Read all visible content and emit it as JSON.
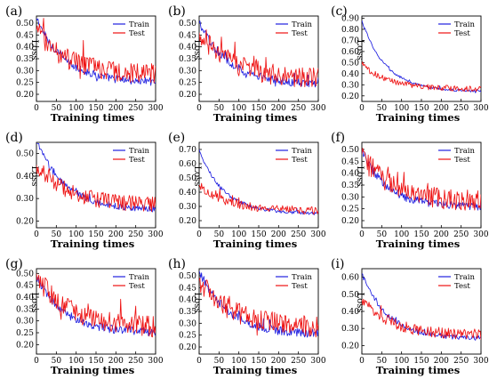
{
  "colors": {
    "train": "#1f1fe0",
    "test": "#ee1111"
  },
  "chart_data": [
    {
      "type": "line",
      "panel_label": "(a)",
      "xlabel": "Training times",
      "ylabel": "Loss",
      "xlim": [
        0,
        300
      ],
      "xticks": [
        0,
        50,
        100,
        150,
        200,
        250,
        300
      ],
      "ylim": [
        0.17,
        0.53
      ],
      "yticks": [
        0.2,
        0.25,
        0.3,
        0.35,
        0.4,
        0.45,
        0.5
      ],
      "ytick_labels": [
        "0.20",
        "0.25",
        "0.30",
        "0.35",
        "0.40",
        "0.45",
        "0.50"
      ],
      "legend": "top-right",
      "series": [
        {
          "name": "Train",
          "start": 0.52,
          "plateau": 0.25,
          "decay": 70,
          "noise": 0.018
        },
        {
          "name": "Test",
          "start": 0.47,
          "plateau": 0.28,
          "decay": 80,
          "noise": 0.045
        }
      ]
    },
    {
      "type": "line",
      "panel_label": "(b)",
      "xlabel": "Training times",
      "ylabel": "Loss",
      "xlim": [
        0,
        300
      ],
      "xticks": [
        0,
        50,
        100,
        150,
        200,
        250,
        300
      ],
      "ylim": [
        0.17,
        0.53
      ],
      "yticks": [
        0.2,
        0.25,
        0.3,
        0.35,
        0.4,
        0.45,
        0.5
      ],
      "ytick_labels": [
        "0.20",
        "0.25",
        "0.30",
        "0.35",
        "0.40",
        "0.45",
        "0.50"
      ],
      "legend": "top-right",
      "series": [
        {
          "name": "Train",
          "start": 0.5,
          "plateau": 0.24,
          "decay": 75,
          "noise": 0.018
        },
        {
          "name": "Test",
          "start": 0.46,
          "plateau": 0.26,
          "decay": 85,
          "noise": 0.045
        }
      ]
    },
    {
      "type": "line",
      "panel_label": "(c)",
      "xlabel": "Training times",
      "ylabel": "Loss",
      "xlim": [
        0,
        300
      ],
      "xticks": [
        0,
        50,
        100,
        150,
        200,
        250,
        300
      ],
      "ylim": [
        0.15,
        0.92
      ],
      "yticks": [
        0.2,
        0.3,
        0.4,
        0.5,
        0.6,
        0.7,
        0.8,
        0.9
      ],
      "ytick_labels": [
        "0.20",
        "0.30",
        "0.40",
        "0.50",
        "0.60",
        "0.70",
        "0.80",
        "0.90"
      ],
      "legend": "top-right",
      "series": [
        {
          "name": "Train",
          "start": 0.88,
          "plateau": 0.24,
          "decay": 60,
          "noise": 0.012
        },
        {
          "name": "Test",
          "start": 0.48,
          "plateau": 0.26,
          "decay": 70,
          "noise": 0.025
        }
      ]
    },
    {
      "type": "line",
      "panel_label": "(d)",
      "xlabel": "Training times",
      "ylabel": "Loss",
      "xlim": [
        0,
        300
      ],
      "xticks": [
        0,
        50,
        100,
        150,
        200,
        250,
        300
      ],
      "ylim": [
        0.17,
        0.55
      ],
      "yticks": [
        0.2,
        0.3,
        0.4,
        0.5
      ],
      "ytick_labels": [
        "0.20",
        "0.30",
        "0.40",
        "0.50"
      ],
      "legend": "top-right",
      "series": [
        {
          "name": "Train",
          "start": 0.56,
          "plateau": 0.25,
          "decay": 70,
          "noise": 0.015
        },
        {
          "name": "Test",
          "start": 0.45,
          "plateau": 0.27,
          "decay": 80,
          "noise": 0.035
        }
      ]
    },
    {
      "type": "line",
      "panel_label": "(e)",
      "xlabel": "Training times",
      "ylabel": "Loss",
      "xlim": [
        0,
        300
      ],
      "xticks": [
        0,
        50,
        100,
        150,
        200,
        250,
        300
      ],
      "ylim": [
        0.15,
        0.75
      ],
      "yticks": [
        0.2,
        0.3,
        0.4,
        0.5,
        0.6,
        0.7
      ],
      "ytick_labels": [
        "0.20",
        "0.30",
        "0.40",
        "0.50",
        "0.60",
        "0.70"
      ],
      "legend": "top-right",
      "series": [
        {
          "name": "Train",
          "start": 0.7,
          "plateau": 0.25,
          "decay": 60,
          "noise": 0.012
        },
        {
          "name": "Test",
          "start": 0.45,
          "plateau": 0.27,
          "decay": 70,
          "noise": 0.028
        }
      ]
    },
    {
      "type": "line",
      "panel_label": "(f)",
      "xlabel": "Training times",
      "ylabel": "Loss",
      "xlim": [
        0,
        300
      ],
      "xticks": [
        0,
        50,
        100,
        150,
        200,
        250,
        300
      ],
      "ylim": [
        0.17,
        0.53
      ],
      "yticks": [
        0.2,
        0.25,
        0.3,
        0.35,
        0.4,
        0.45,
        0.5
      ],
      "ytick_labels": [
        "0.20",
        "0.25",
        "0.30",
        "0.35",
        "0.40",
        "0.45",
        "0.50"
      ],
      "legend": "top-right",
      "series": [
        {
          "name": "Train",
          "start": 0.5,
          "plateau": 0.26,
          "decay": 60,
          "noise": 0.018
        },
        {
          "name": "Test",
          "start": 0.48,
          "plateau": 0.28,
          "decay": 75,
          "noise": 0.045
        }
      ]
    },
    {
      "type": "line",
      "panel_label": "(g)",
      "xlabel": "Training times",
      "ylabel": "Loss",
      "xlim": [
        0,
        300
      ],
      "xticks": [
        0,
        50,
        100,
        150,
        200,
        250,
        300
      ],
      "ylim": [
        0.16,
        0.52
      ],
      "yticks": [
        0.2,
        0.25,
        0.3,
        0.35,
        0.4,
        0.45,
        0.5
      ],
      "ytick_labels": [
        "0.20",
        "0.25",
        "0.30",
        "0.35",
        "0.40",
        "0.45",
        "0.50"
      ],
      "legend": "top-right",
      "series": [
        {
          "name": "Train",
          "start": 0.49,
          "plateau": 0.25,
          "decay": 70,
          "noise": 0.018
        },
        {
          "name": "Test",
          "start": 0.5,
          "plateau": 0.27,
          "decay": 80,
          "noise": 0.045
        }
      ]
    },
    {
      "type": "line",
      "panel_label": "(h)",
      "xlabel": "Training times",
      "ylabel": "Loss",
      "xlim": [
        0,
        300
      ],
      "xticks": [
        0,
        50,
        100,
        150,
        200,
        250,
        300
      ],
      "ylim": [
        0.17,
        0.53
      ],
      "yticks": [
        0.2,
        0.25,
        0.3,
        0.35,
        0.4,
        0.45,
        0.5
      ],
      "ytick_labels": [
        "0.20",
        "0.25",
        "0.30",
        "0.35",
        "0.40",
        "0.45",
        "0.50"
      ],
      "legend": "top-right",
      "series": [
        {
          "name": "Train",
          "start": 0.52,
          "plateau": 0.25,
          "decay": 75,
          "noise": 0.018
        },
        {
          "name": "Test",
          "start": 0.48,
          "plateau": 0.28,
          "decay": 85,
          "noise": 0.045
        }
      ]
    },
    {
      "type": "line",
      "panel_label": "(i)",
      "xlabel": "Training times",
      "ylabel": "Loss",
      "xlim": [
        0,
        300
      ],
      "xticks": [
        0,
        50,
        100,
        150,
        200,
        250,
        300
      ],
      "ylim": [
        0.15,
        0.65
      ],
      "yticks": [
        0.2,
        0.3,
        0.4,
        0.5,
        0.6
      ],
      "ytick_labels": [
        "0.20",
        "0.30",
        "0.40",
        "0.50",
        "0.60"
      ],
      "legend": "top-right",
      "series": [
        {
          "name": "Train",
          "start": 0.62,
          "plateau": 0.24,
          "decay": 65,
          "noise": 0.014
        },
        {
          "name": "Test",
          "start": 0.47,
          "plateau": 0.26,
          "decay": 75,
          "noise": 0.032
        }
      ]
    }
  ]
}
